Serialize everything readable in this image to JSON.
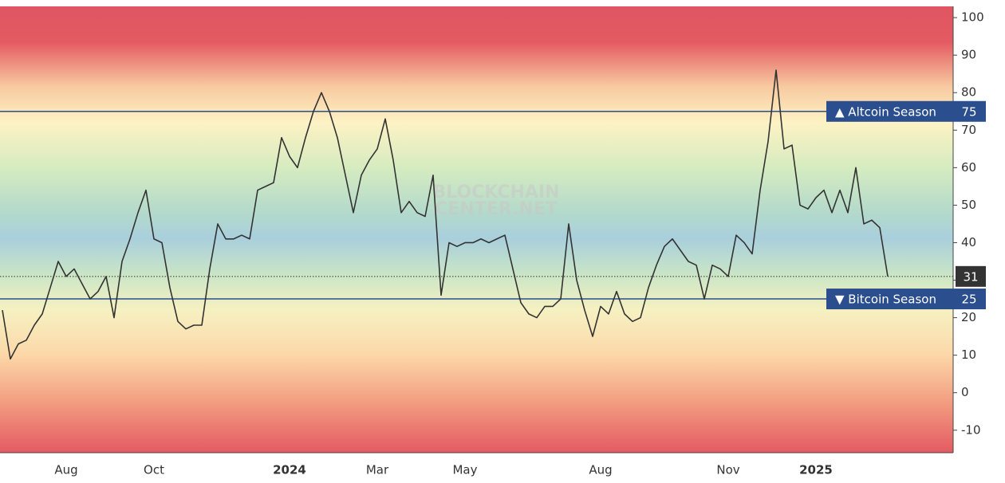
{
  "chart_data": {
    "type": "line",
    "watermark": [
      "BLOCKCHAIN",
      "CENTER.NET"
    ],
    "categories": [
      null,
      null,
      null,
      null,
      null,
      null,
      null,
      null,
      "Aug",
      null,
      null,
      null,
      null,
      null,
      null,
      null,
      null,
      null,
      null,
      "Oct",
      null,
      null,
      null,
      null,
      null,
      null,
      null,
      null,
      null,
      null,
      null,
      null,
      null,
      null,
      null,
      null,
      "2024",
      null,
      null,
      null,
      null,
      null,
      null,
      null,
      null,
      null,
      null,
      "Mar",
      null,
      null,
      null,
      null,
      null,
      null,
      null,
      null,
      null,
      null,
      "May",
      null,
      null,
      null,
      null,
      null,
      null,
      null,
      null,
      null,
      null,
      null,
      null,
      null,
      null,
      null,
      null,
      "Aug",
      null,
      null,
      null,
      null,
      null,
      null,
      null,
      null,
      null,
      null,
      null,
      null,
      null,
      null,
      null,
      "Nov",
      null,
      null,
      null,
      null,
      null,
      null,
      null,
      null,
      null,
      null,
      "2025",
      null,
      null,
      null,
      null,
      null,
      null,
      null,
      null,
      null
    ],
    "values": [
      22,
      9,
      13,
      14,
      18,
      21,
      28,
      35,
      31,
      33,
      29,
      25,
      27,
      31,
      20,
      35,
      41,
      48,
      54,
      41,
      40,
      28,
      19,
      17,
      18,
      18,
      33,
      45,
      41,
      41,
      42,
      41,
      54,
      55,
      56,
      68,
      63,
      60,
      68,
      75,
      80,
      75,
      68,
      58,
      48,
      58,
      62,
      65,
      73,
      62,
      48,
      51,
      48,
      47,
      58,
      26,
      40,
      39,
      40,
      40,
      41,
      40,
      41,
      42,
      33,
      24,
      21,
      20,
      23,
      23,
      25,
      45,
      30,
      22,
      15,
      23,
      21,
      27,
      21,
      19,
      20,
      28,
      34,
      39,
      41,
      38,
      35,
      34,
      25,
      34,
      33,
      31,
      42,
      40,
      37,
      54,
      67,
      86,
      65,
      66,
      50,
      49,
      52,
      54,
      48,
      54,
      48,
      60,
      45,
      46,
      44,
      31
    ],
    "color": "#333333",
    "ylim": [
      -16,
      103
    ],
    "yticks": [
      -10,
      0,
      10,
      20,
      30,
      40,
      50,
      60,
      70,
      80,
      90,
      100
    ],
    "reference_lines": [
      {
        "label": "▲ Altcoin Season",
        "value": 75,
        "color": "#2b4f8e"
      },
      {
        "label": "▼ Bitcoin Season",
        "value": 25,
        "color": "#2b4f8e"
      }
    ]
  }
}
